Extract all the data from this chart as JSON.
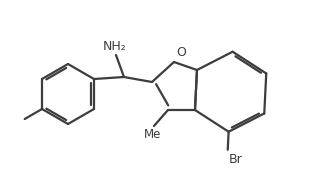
{
  "bg_color": "#ffffff",
  "line_color": "#3d3d3d",
  "line_width": 1.6,
  "NH2_label": "NH₂",
  "O_label": "O",
  "Br_label": "Br",
  "Me_label": "Me",
  "font_size": 9.0
}
